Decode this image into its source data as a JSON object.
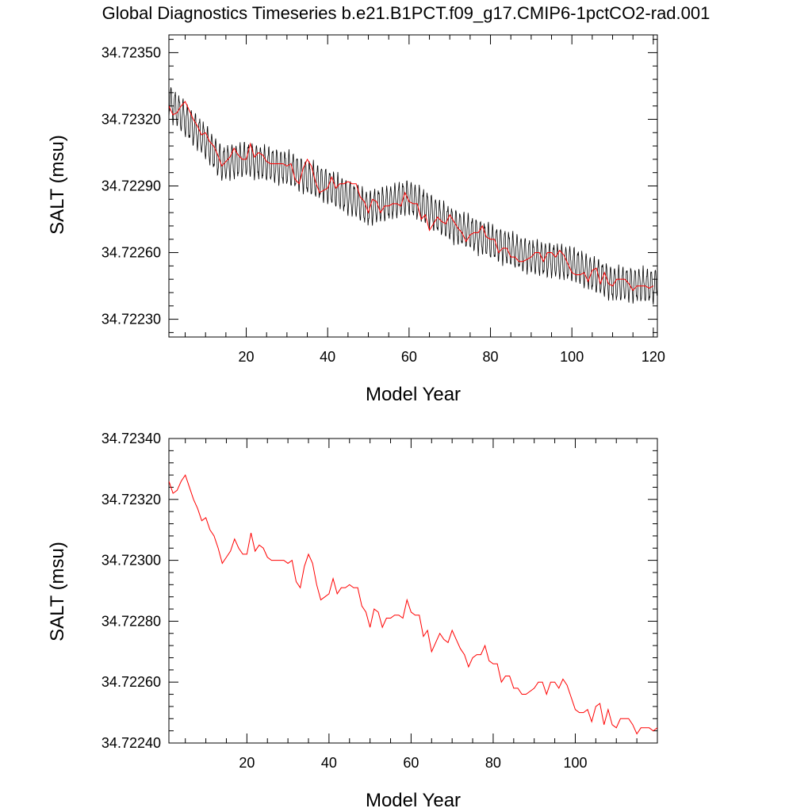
{
  "title": "Global Diagnostics Timeseries b.e21.B1PCT.f09_g17.CMIP6-1pctCO2-rad.001",
  "colors": {
    "monthly": "#000000",
    "annual": "#ff0000",
    "axes": "#000000",
    "background": "#ffffff"
  },
  "chart_data": [
    {
      "type": "line",
      "xlabel": "Model Year",
      "ylabel": "SALT (msu)",
      "xlim": [
        1,
        121
      ],
      "ylim": [
        34.72222,
        34.72358
      ],
      "xticks": [
        20,
        40,
        60,
        80,
        100,
        120
      ],
      "xtick_labels": [
        "20",
        "40",
        "60",
        "80",
        "100",
        "120"
      ],
      "yticks": [
        34.7223,
        34.7226,
        34.7229,
        34.7232,
        34.7235
      ],
      "ytick_labels": [
        "34.72230",
        "34.72260",
        "34.72290",
        "34.72320",
        "34.72350"
      ],
      "monthly_series": {
        "name": "",
        "color": "#000000",
        "seasonal_amplitude": 0.00014,
        "base_x": [
          1,
          10,
          14,
          20,
          30,
          40,
          50,
          60,
          70,
          80,
          90,
          100,
          110,
          120
        ],
        "base_y": [
          34.72328,
          34.7231,
          34.723,
          34.72302,
          34.72298,
          34.7229,
          34.7228,
          34.72285,
          34.72273,
          34.72265,
          34.72258,
          34.72255,
          34.72246,
          34.72245
        ]
      },
      "series": [
        {
          "name": "",
          "color": "#ff0000",
          "x": [
            1,
            2,
            3,
            4,
            5,
            6,
            7,
            8,
            9,
            10,
            11,
            12,
            13,
            14,
            15,
            16,
            17,
            18,
            19,
            20,
            21,
            22,
            23,
            24,
            25,
            26,
            27,
            28,
            29,
            30,
            31,
            32,
            33,
            34,
            35,
            36,
            37,
            38,
            39,
            40,
            41,
            42,
            43,
            44,
            45,
            46,
            47,
            48,
            49,
            50,
            51,
            52,
            53,
            54,
            55,
            56,
            57,
            58,
            59,
            60,
            61,
            62,
            63,
            64,
            65,
            66,
            67,
            68,
            69,
            70,
            71,
            72,
            73,
            74,
            75,
            76,
            77,
            78,
            79,
            80,
            81,
            82,
            83,
            84,
            85,
            86,
            87,
            88,
            89,
            90,
            91,
            92,
            93,
            94,
            95,
            96,
            97,
            98,
            99,
            100,
            101,
            102,
            103,
            104,
            105,
            106,
            107,
            108,
            109,
            110,
            111,
            112,
            113,
            114,
            115,
            116,
            117,
            118,
            119,
            120
          ],
          "values": [
            34.72326,
            34.72322,
            34.72323,
            34.72326,
            34.72328,
            34.72324,
            34.7232,
            34.72317,
            34.72313,
            34.72314,
            34.7231,
            34.72308,
            34.72304,
            34.72299,
            34.72301,
            34.72303,
            34.72307,
            34.72304,
            34.72302,
            34.72302,
            34.72309,
            34.72303,
            34.72305,
            34.72304,
            34.72301,
            34.723,
            34.723,
            34.723,
            34.723,
            34.72299,
            34.723,
            34.72293,
            34.72291,
            34.72298,
            34.72302,
            34.72299,
            34.72292,
            34.72287,
            34.72288,
            34.72289,
            34.72294,
            34.72289,
            34.72291,
            34.72291,
            34.72292,
            34.72291,
            34.72291,
            34.72285,
            34.72283,
            34.72278,
            34.72284,
            34.72283,
            34.72278,
            34.72281,
            34.72281,
            34.72282,
            34.72282,
            34.72281,
            34.72287,
            34.72283,
            34.72282,
            34.72282,
            34.72275,
            34.72277,
            34.7227,
            34.72273,
            34.72276,
            34.72274,
            34.72273,
            34.72277,
            34.72274,
            34.72271,
            34.72269,
            34.72265,
            34.72268,
            34.72269,
            34.72269,
            34.72272,
            34.72267,
            34.72266,
            34.72266,
            34.7226,
            34.72262,
            34.72262,
            34.72258,
            34.72258,
            34.72256,
            34.72256,
            34.72257,
            34.72258,
            34.7226,
            34.7226,
            34.72256,
            34.7226,
            34.7226,
            34.72258,
            34.72261,
            34.72259,
            34.72255,
            34.72251,
            34.7225,
            34.7225,
            34.72251,
            34.72247,
            34.72252,
            34.72253,
            34.72246,
            34.72251,
            34.72246,
            34.72245,
            34.72248,
            34.72248,
            34.72248,
            34.72246,
            34.72243,
            34.72245,
            34.72245,
            34.72245,
            34.72244,
            34.72245
          ]
        }
      ]
    },
    {
      "type": "line",
      "xlabel": "Model Year",
      "ylabel": "SALT (msu)",
      "xlim": [
        1,
        120
      ],
      "ylim": [
        34.7224,
        34.7234
      ],
      "xticks": [
        20,
        40,
        60,
        80,
        100
      ],
      "xtick_labels": [
        "20",
        "40",
        "60",
        "80",
        "100"
      ],
      "yticks": [
        34.7224,
        34.7226,
        34.7228,
        34.723,
        34.7232,
        34.7234
      ],
      "ytick_labels": [
        "34.72240",
        "34.72260",
        "34.72280",
        "34.72300",
        "34.72320",
        "34.72340"
      ],
      "series": [
        {
          "name": "",
          "color": "#ff0000",
          "x": [
            1,
            2,
            3,
            4,
            5,
            6,
            7,
            8,
            9,
            10,
            11,
            12,
            13,
            14,
            15,
            16,
            17,
            18,
            19,
            20,
            21,
            22,
            23,
            24,
            25,
            26,
            27,
            28,
            29,
            30,
            31,
            32,
            33,
            34,
            35,
            36,
            37,
            38,
            39,
            40,
            41,
            42,
            43,
            44,
            45,
            46,
            47,
            48,
            49,
            50,
            51,
            52,
            53,
            54,
            55,
            56,
            57,
            58,
            59,
            60,
            61,
            62,
            63,
            64,
            65,
            66,
            67,
            68,
            69,
            70,
            71,
            72,
            73,
            74,
            75,
            76,
            77,
            78,
            79,
            80,
            81,
            82,
            83,
            84,
            85,
            86,
            87,
            88,
            89,
            90,
            91,
            92,
            93,
            94,
            95,
            96,
            97,
            98,
            99,
            100,
            101,
            102,
            103,
            104,
            105,
            106,
            107,
            108,
            109,
            110,
            111,
            112,
            113,
            114,
            115,
            116,
            117,
            118,
            119,
            120
          ],
          "values": [
            34.72326,
            34.72322,
            34.72323,
            34.72326,
            34.72328,
            34.72324,
            34.7232,
            34.72317,
            34.72313,
            34.72314,
            34.7231,
            34.72308,
            34.72304,
            34.72299,
            34.72301,
            34.72303,
            34.72307,
            34.72304,
            34.72302,
            34.72302,
            34.72309,
            34.72303,
            34.72305,
            34.72304,
            34.72301,
            34.723,
            34.723,
            34.723,
            34.723,
            34.72299,
            34.723,
            34.72293,
            34.72291,
            34.72298,
            34.72302,
            34.72299,
            34.72292,
            34.72287,
            34.72288,
            34.72289,
            34.72294,
            34.72289,
            34.72291,
            34.72291,
            34.72292,
            34.72291,
            34.72291,
            34.72285,
            34.72283,
            34.72278,
            34.72284,
            34.72283,
            34.72278,
            34.72281,
            34.72281,
            34.72282,
            34.72282,
            34.72281,
            34.72287,
            34.72283,
            34.72282,
            34.72282,
            34.72275,
            34.72277,
            34.7227,
            34.72273,
            34.72276,
            34.72274,
            34.72273,
            34.72277,
            34.72274,
            34.72271,
            34.72269,
            34.72265,
            34.72268,
            34.72269,
            34.72269,
            34.72272,
            34.72267,
            34.72266,
            34.72266,
            34.7226,
            34.72262,
            34.72262,
            34.72258,
            34.72258,
            34.72256,
            34.72256,
            34.72257,
            34.72258,
            34.7226,
            34.7226,
            34.72256,
            34.7226,
            34.7226,
            34.72258,
            34.72261,
            34.72259,
            34.72255,
            34.72251,
            34.7225,
            34.7225,
            34.72251,
            34.72247,
            34.72252,
            34.72253,
            34.72246,
            34.72251,
            34.72246,
            34.72245,
            34.72248,
            34.72248,
            34.72248,
            34.72246,
            34.72243,
            34.72245,
            34.72245,
            34.72245,
            34.72244,
            34.72245
          ]
        }
      ]
    }
  ]
}
